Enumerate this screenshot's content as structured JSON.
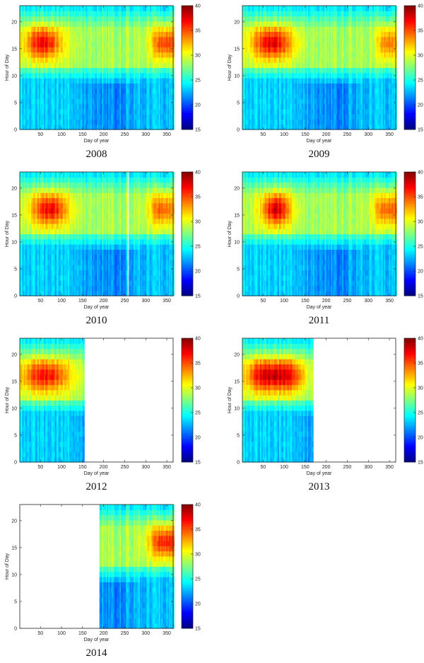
{
  "chart_data": [
    {
      "type": "heatmap",
      "year_label": "2008",
      "xlabel": "Day of year",
      "ylabel": "Hour of Day",
      "xlim": [
        1,
        365
      ],
      "ylim": [
        0,
        23
      ],
      "x_ticks": [
        "50",
        "100",
        "150",
        "200",
        "250",
        "300",
        "350"
      ],
      "y_ticks": [
        "0",
        "5",
        "10",
        "15",
        "20"
      ],
      "colorbar": {
        "min": 15,
        "max": 40,
        "ticks": [
          "15",
          "20",
          "25",
          "30",
          "35",
          "40"
        ],
        "colormap": "jet"
      },
      "data_days": [
        1,
        365
      ],
      "gaps": [],
      "peak_heat": [
        {
          "day_center": 55,
          "day_width": 45,
          "intensity": 1.0
        },
        {
          "day_center": 345,
          "day_width": 35,
          "intensity": 0.85
        }
      ]
    },
    {
      "type": "heatmap",
      "year_label": "2009",
      "xlabel": "Day of year",
      "ylabel": "Hour of Day",
      "xlim": [
        1,
        365
      ],
      "ylim": [
        0,
        23
      ],
      "x_ticks": [
        "50",
        "100",
        "150",
        "200",
        "250",
        "300",
        "350"
      ],
      "y_ticks": [
        "0",
        "5",
        "10",
        "15",
        "20"
      ],
      "colorbar": {
        "min": 15,
        "max": 40,
        "ticks": [
          "15",
          "20",
          "25",
          "30",
          "35",
          "40"
        ],
        "colormap": "jet"
      },
      "data_days": [
        1,
        365
      ],
      "gaps": [],
      "peak_heat": [
        {
          "day_center": 70,
          "day_width": 50,
          "intensity": 1.05
        },
        {
          "day_center": 345,
          "day_width": 25,
          "intensity": 0.7
        }
      ]
    },
    {
      "type": "heatmap",
      "year_label": "2010",
      "xlabel": "Day of year",
      "ylabel": "Hour of Day",
      "xlim": [
        1,
        365
      ],
      "ylim": [
        0,
        23
      ],
      "x_ticks": [
        "50",
        "100",
        "150",
        "200",
        "250",
        "300",
        "350"
      ],
      "y_ticks": [
        "0",
        "5",
        "10",
        "15",
        "20"
      ],
      "colorbar": {
        "min": 15,
        "max": 40,
        "ticks": [
          "15",
          "20",
          "25",
          "30",
          "35",
          "40"
        ],
        "colormap": "jet"
      },
      "data_days": [
        1,
        365
      ],
      "gaps": [
        255
      ],
      "peak_heat": [
        {
          "day_center": 70,
          "day_width": 45,
          "intensity": 1.0
        },
        {
          "day_center": 340,
          "day_width": 35,
          "intensity": 0.75
        }
      ]
    },
    {
      "type": "heatmap",
      "year_label": "2011",
      "xlabel": "Day of year",
      "ylabel": "Hour of Day",
      "xlim": [
        1,
        365
      ],
      "ylim": [
        0,
        23
      ],
      "x_ticks": [
        "50",
        "100",
        "150",
        "200",
        "250",
        "300",
        "350"
      ],
      "y_ticks": [
        "0",
        "5",
        "10",
        "15",
        "20"
      ],
      "colorbar": {
        "min": 15,
        "max": 40,
        "ticks": [
          "15",
          "20",
          "25",
          "30",
          "35",
          "40"
        ],
        "colormap": "jet"
      },
      "data_days": [
        1,
        365
      ],
      "gaps": [],
      "peak_heat": [
        {
          "day_center": 80,
          "day_width": 35,
          "intensity": 1.1
        },
        {
          "day_center": 345,
          "day_width": 35,
          "intensity": 0.75
        }
      ]
    },
    {
      "type": "heatmap",
      "year_label": "2012",
      "xlabel": "Day of year",
      "ylabel": "Hour of Day",
      "xlim": [
        1,
        365
      ],
      "ylim": [
        0,
        23
      ],
      "x_ticks": [
        "50",
        "100",
        "150",
        "200",
        "250",
        "300",
        "350"
      ],
      "y_ticks": [
        "0",
        "5",
        "10",
        "15",
        "20"
      ],
      "colorbar": {
        "min": 15,
        "max": 40,
        "ticks": [
          "15",
          "20",
          "25",
          "30",
          "35",
          "40"
        ],
        "colormap": "jet"
      },
      "data_days": [
        1,
        153
      ],
      "gaps": [],
      "peak_heat": [
        {
          "day_center": 60,
          "day_width": 60,
          "intensity": 0.95
        }
      ]
    },
    {
      "type": "heatmap",
      "year_label": "2013",
      "xlabel": "Day of year",
      "ylabel": "Hour of Day",
      "xlim": [
        1,
        365
      ],
      "ylim": [
        0,
        23
      ],
      "x_ticks": [
        "50",
        "100",
        "150",
        "200",
        "250",
        "300",
        "350"
      ],
      "y_ticks": [
        "0",
        "5",
        "10",
        "15",
        "20"
      ],
      "colorbar": {
        "min": 15,
        "max": 40,
        "ticks": [
          "15",
          "20",
          "25",
          "30",
          "35",
          "40"
        ],
        "colormap": "jet"
      },
      "data_days": [
        1,
        168
      ],
      "gaps": [],
      "peak_heat": [
        {
          "day_center": 50,
          "day_width": 45,
          "intensity": 1.0
        },
        {
          "day_center": 110,
          "day_width": 40,
          "intensity": 0.85
        }
      ]
    },
    {
      "type": "heatmap",
      "year_label": "2014",
      "xlabel": "Day of year",
      "ylabel": "Hour of Day",
      "xlim": [
        1,
        365
      ],
      "ylim": [
        0,
        23
      ],
      "x_ticks": [
        "50",
        "100",
        "150",
        "200",
        "250",
        "300",
        "350"
      ],
      "y_ticks": [
        "0",
        "5",
        "10",
        "15",
        "20"
      ],
      "colorbar": {
        "min": 15,
        "max": 40,
        "ticks": [
          "15",
          "20",
          "25",
          "30",
          "35",
          "40"
        ],
        "colormap": "jet"
      },
      "data_days": [
        190,
        365
      ],
      "gaps": [],
      "peak_heat": [
        {
          "day_center": 345,
          "day_width": 40,
          "intensity": 0.95
        }
      ]
    }
  ]
}
